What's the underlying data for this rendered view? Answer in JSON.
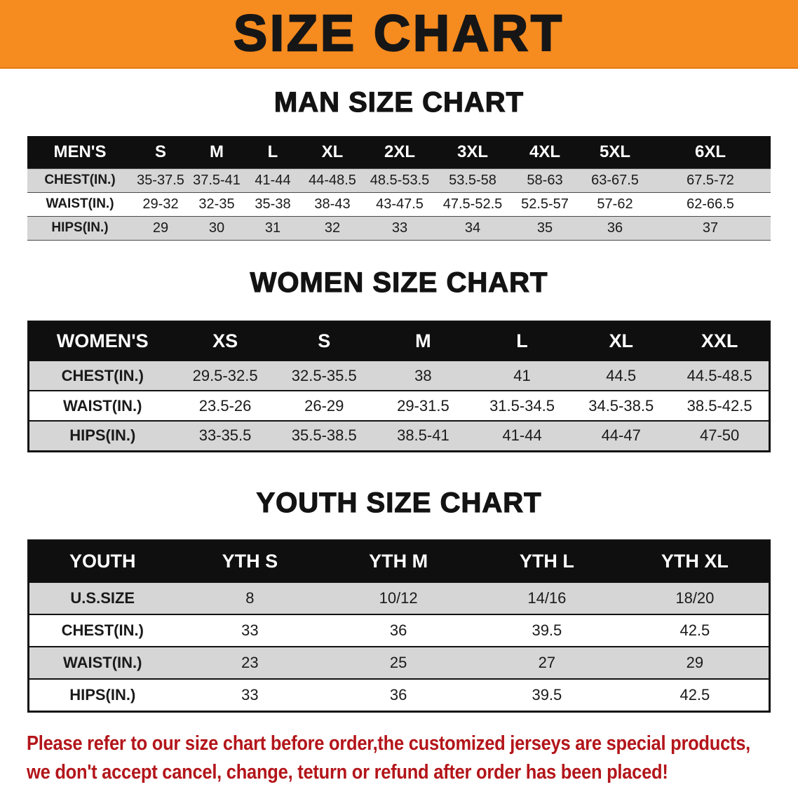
{
  "banner": {
    "title": "SIZE CHART"
  },
  "sections": [
    {
      "id": "mens",
      "heading": "MAN SIZE CHART",
      "table": {
        "header": [
          "MEN'S",
          "S",
          "M",
          "L",
          "XL",
          "2XL",
          "3XL",
          "4XL",
          "5XL",
          "6XL"
        ],
        "rows": [
          [
            "CHEST(IN.)",
            "35-37.5",
            "37.5-41",
            "41-44",
            "44-48.5",
            "48.5-53.5",
            "53.5-58",
            "58-63",
            "63-67.5",
            "67.5-72"
          ],
          [
            "WAIST(IN.)",
            "29-32",
            "32-35",
            "35-38",
            "38-43",
            "43-47.5",
            "47.5-52.5",
            "52.5-57",
            "57-62",
            "62-66.5"
          ],
          [
            "HIPS(IN.)",
            "29",
            "30",
            "31",
            "32",
            "33",
            "34",
            "35",
            "36",
            "37"
          ]
        ]
      }
    },
    {
      "id": "womens",
      "heading": "WOMEN SIZE CHART",
      "table": {
        "header": [
          "WOMEN'S",
          "XS",
          "S",
          "M",
          "L",
          "XL",
          "XXL"
        ],
        "rows": [
          [
            "CHEST(IN.)",
            "29.5-32.5",
            "32.5-35.5",
            "38",
            "41",
            "44.5",
            "44.5-48.5"
          ],
          [
            "WAIST(IN.)",
            "23.5-26",
            "26-29",
            "29-31.5",
            "31.5-34.5",
            "34.5-38.5",
            "38.5-42.5"
          ],
          [
            "HIPS(IN.)",
            "33-35.5",
            "35.5-38.5",
            "38.5-41",
            "41-44",
            "44-47",
            "47-50"
          ]
        ]
      }
    },
    {
      "id": "youth",
      "heading": "YOUTH SIZE CHART",
      "table": {
        "header": [
          "YOUTH",
          "YTH S",
          "YTH M",
          "YTH L",
          "YTH XL"
        ],
        "rows": [
          [
            "U.S.SIZE",
            "8",
            "10/12",
            "14/16",
            "18/20"
          ],
          [
            "CHEST(IN.)",
            "33",
            "36",
            "39.5",
            "42.5"
          ],
          [
            "WAIST(IN.)",
            "23",
            "25",
            "27",
            "29"
          ],
          [
            "HIPS(IN.)",
            "33",
            "36",
            "39.5",
            "42.5"
          ]
        ]
      }
    }
  ],
  "disclaimer": {
    "lines": [
      "Please refer to our size chart before order,the customized jerseys are special products,",
      "we don't accept cancel, change, teturn or refund after order has been placed!"
    ]
  },
  "colors": {
    "banner_orange": "#f68b1f",
    "table_header_black": "#0f0f0f",
    "row_gray": "#d6d6d6",
    "row_white": "#ffffff",
    "disclaimer_red": "#b3151a"
  }
}
